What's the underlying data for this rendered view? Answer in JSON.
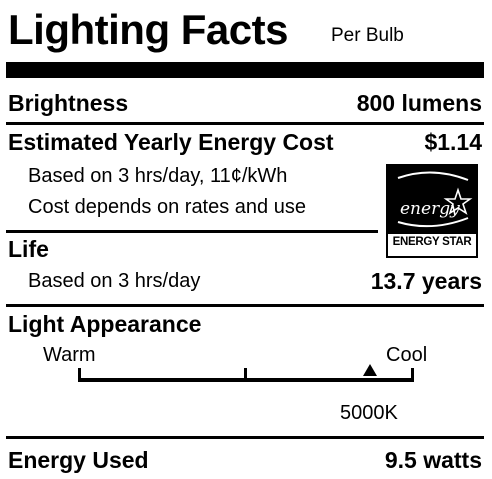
{
  "header": {
    "title": "Lighting Facts",
    "subtitle": "Per Bulb"
  },
  "brightness": {
    "label": "Brightness",
    "value": "800 lumens"
  },
  "energy_cost": {
    "label": "Estimated Yearly Energy Cost",
    "value": "$1.14",
    "note_1": "Based on 3 hrs/day, 11¢/kWh",
    "note_2": "Cost depends on rates and use"
  },
  "energy_star": {
    "logo_text": "energy",
    "caption": "ENERGY STAR"
  },
  "life": {
    "label": "Life",
    "note": "Based on 3 hrs/day",
    "value": "13.7 years"
  },
  "appearance": {
    "label": "Light Appearance",
    "warm_label": "Warm",
    "cool_label": "Cool",
    "marker_label": "5000K",
    "marker_position": 0.87
  },
  "energy_used": {
    "label": "Energy Used",
    "value": "9.5 watts"
  }
}
